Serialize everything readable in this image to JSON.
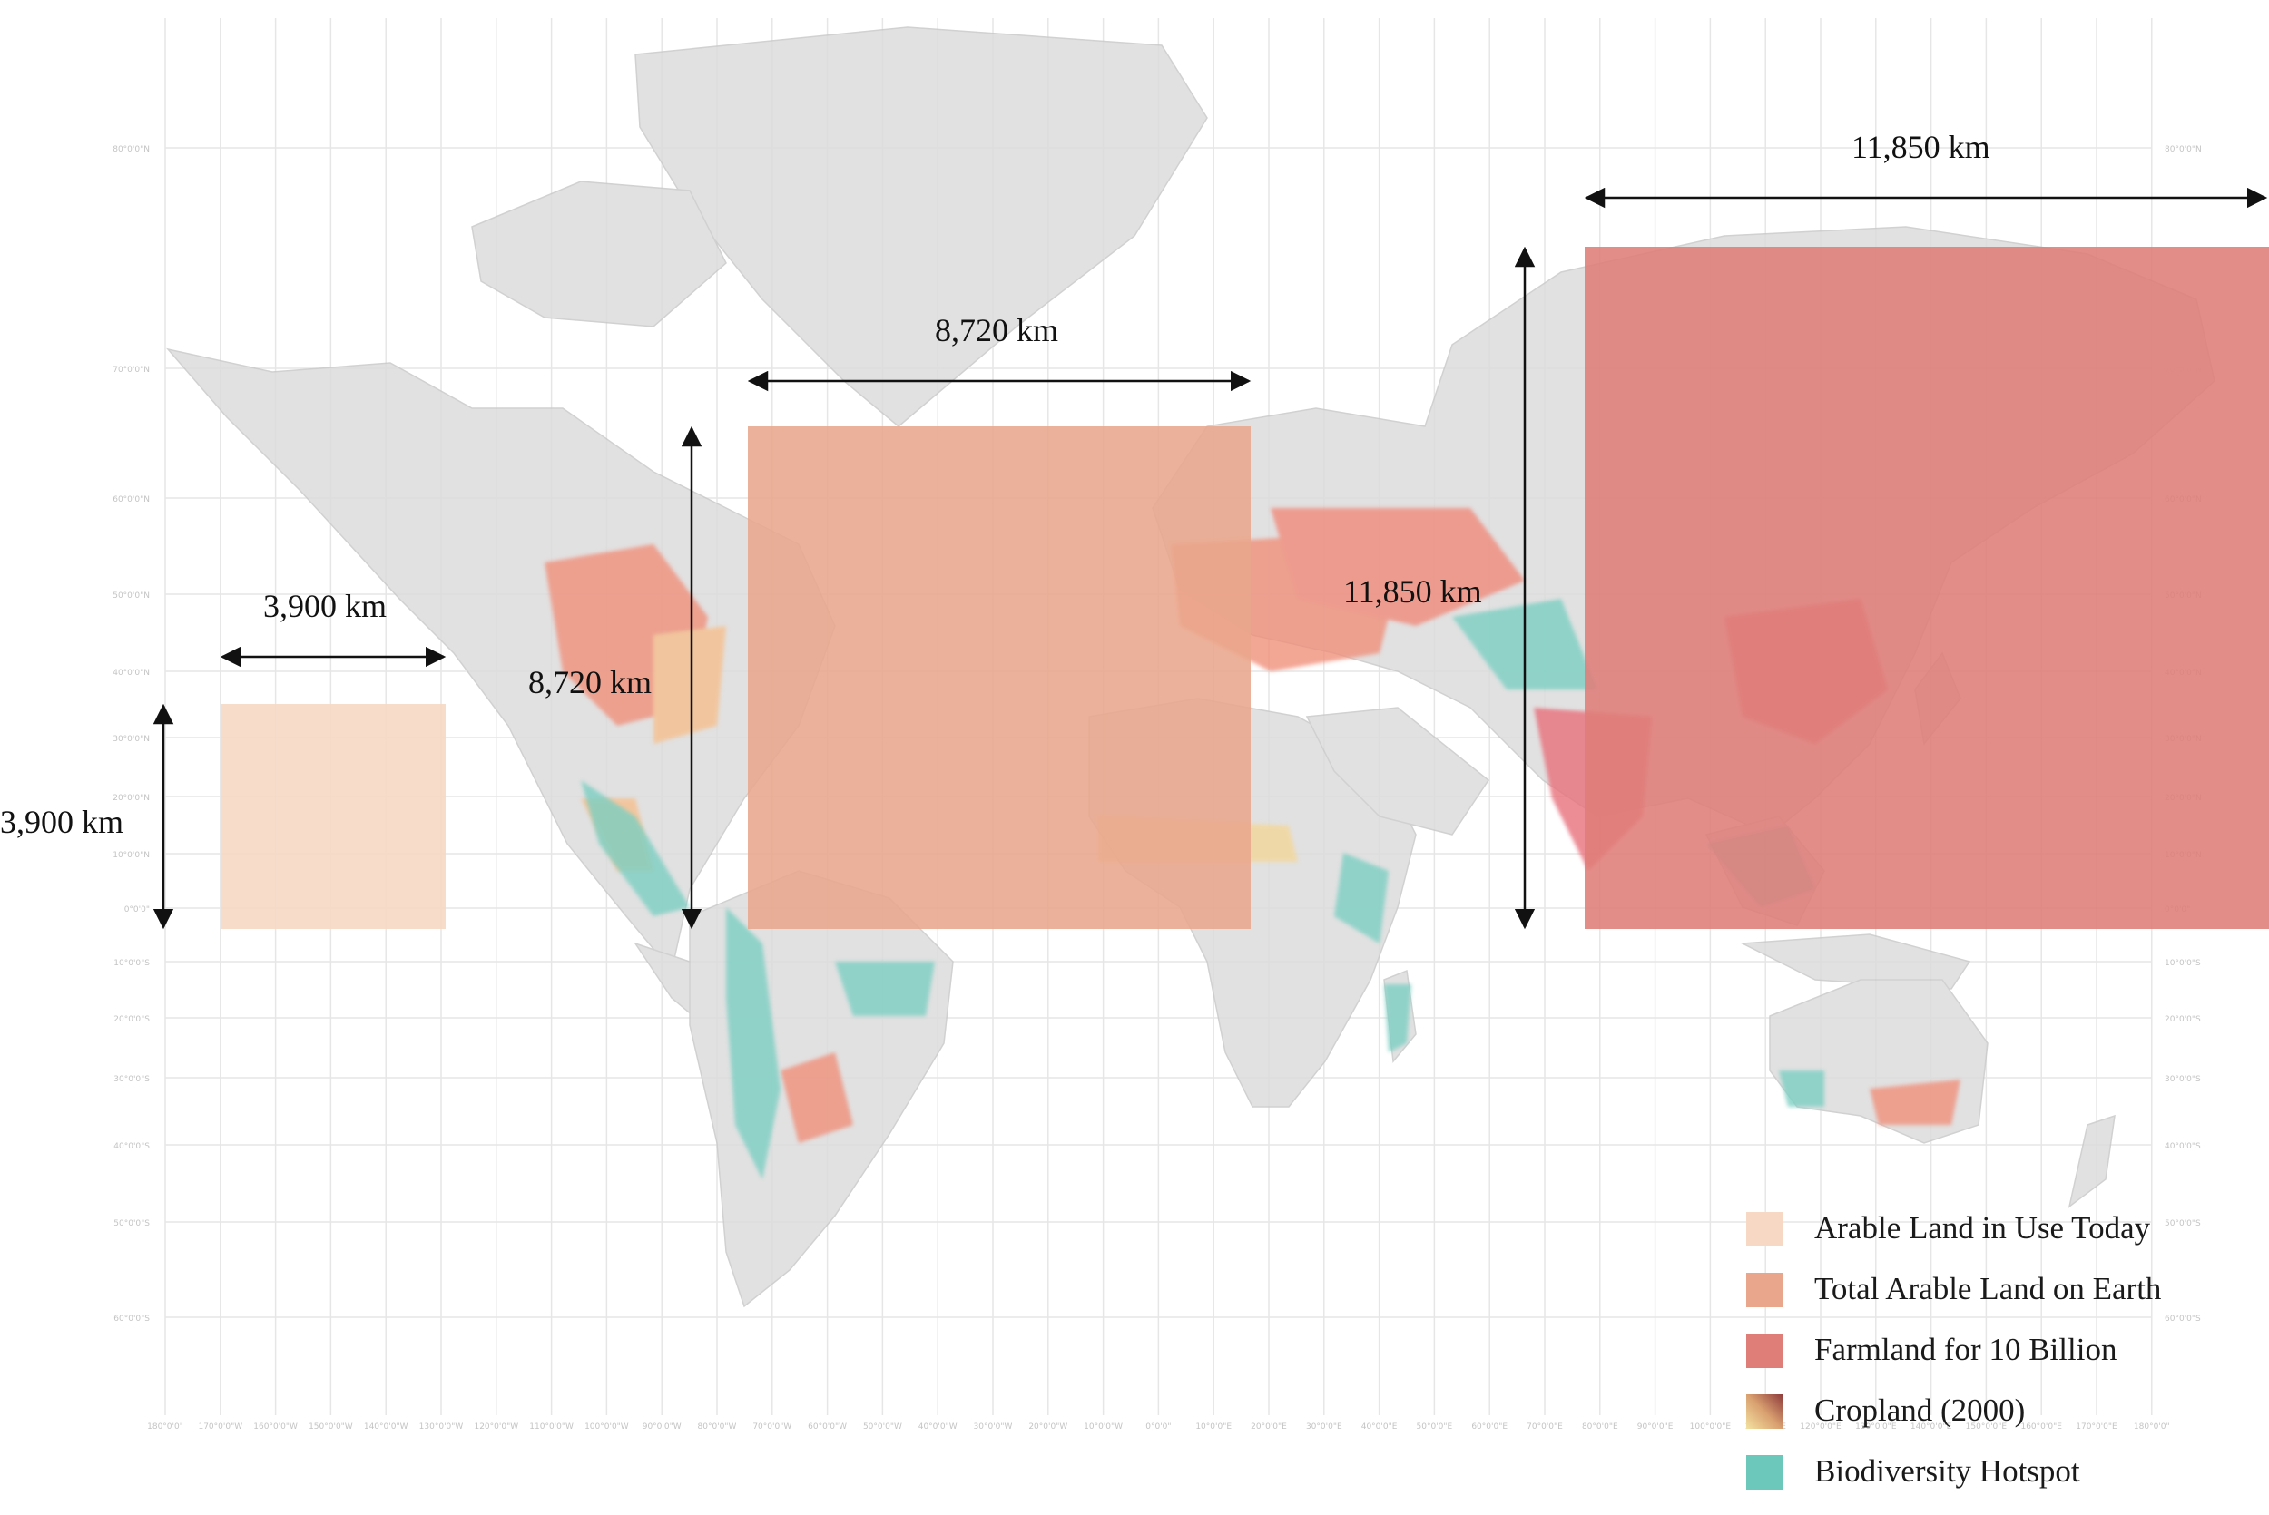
{
  "graticule": {
    "longitude_labels": [
      "180°0'0\"",
      "170°0'0\"W",
      "160°0'0\"W",
      "150°0'0\"W",
      "140°0'0\"W",
      "130°0'0\"W",
      "120°0'0\"W",
      "110°0'0\"W",
      "100°0'0\"W",
      "90°0'0\"W",
      "80°0'0\"W",
      "70°0'0\"W",
      "60°0'0\"W",
      "50°0'0\"W",
      "40°0'0\"W",
      "30°0'0\"W",
      "20°0'0\"W",
      "10°0'0\"W",
      "0°0'0\"",
      "10°0'0\"E",
      "20°0'0\"E",
      "30°0'0\"E",
      "40°0'0\"E",
      "50°0'0\"E",
      "60°0'0\"E",
      "70°0'0\"E",
      "80°0'0\"E",
      "90°0'0\"E",
      "100°0'0\"E",
      "110°0'0\"E",
      "120°0'0\"E",
      "130°0'0\"E",
      "140°0'0\"E",
      "150°0'0\"E",
      "160°0'0\"E",
      "170°0'0\"E",
      "180°0'0\""
    ],
    "latitude_labels": [
      {
        "lat": 80,
        "label": "80°0'0\"N"
      },
      {
        "lat": 70,
        "label": "70°0'0\"N"
      },
      {
        "lat": 60,
        "label": "60°0'0\"N"
      },
      {
        "lat": 50,
        "label": "50°0'0\"N"
      },
      {
        "lat": 40,
        "label": "40°0'0\"N"
      },
      {
        "lat": 30,
        "label": "30°0'0\"N"
      },
      {
        "lat": 20,
        "label": "20°0'0\"N"
      },
      {
        "lat": 10,
        "label": "10°0'0\"N"
      },
      {
        "lat": 0,
        "label": "0°0'0\""
      },
      {
        "lat": -10,
        "label": "10°0'0\"S"
      },
      {
        "lat": -20,
        "label": "20°0'0\"S"
      },
      {
        "lat": -30,
        "label": "30°0'0\"S"
      },
      {
        "lat": -40,
        "label": "40°0'0\"S"
      },
      {
        "lat": -50,
        "label": "50°0'0\"S"
      },
      {
        "lat": -60,
        "label": "60°0'0\"S"
      }
    ]
  },
  "squares": [
    {
      "id": "arable-today",
      "width_label": "3,900 km",
      "height_label": "3,900 km",
      "color": "#f6d8c4"
    },
    {
      "id": "total-arable",
      "width_label": "8,720 km",
      "height_label": "8,720 km",
      "color": "#e9a68c"
    },
    {
      "id": "farmland-10b",
      "width_label": "11,850 km",
      "height_label": "11,850 km",
      "color": "#df7d79"
    }
  ],
  "legend": {
    "items": [
      {
        "label": "Arable Land in Use Today",
        "color": "#f6d8c4"
      },
      {
        "label": "Total Arable Land on Earth",
        "color": "#e9a68c"
      },
      {
        "label": "Farmland for 10 Billion",
        "color": "#df7d79"
      },
      {
        "label": "Cropland (2000)",
        "gradient": [
          "#f3e2a1",
          "#d9a070",
          "#8f3c3c"
        ]
      },
      {
        "label": "Biodiversity Hotspot",
        "color": "#6cc8bb"
      }
    ]
  },
  "colors": {
    "land": "#dcdcdc",
    "graticule": "#e6e6e6",
    "cropland": "#f0907a",
    "hotspot": "#7ccfc2"
  }
}
